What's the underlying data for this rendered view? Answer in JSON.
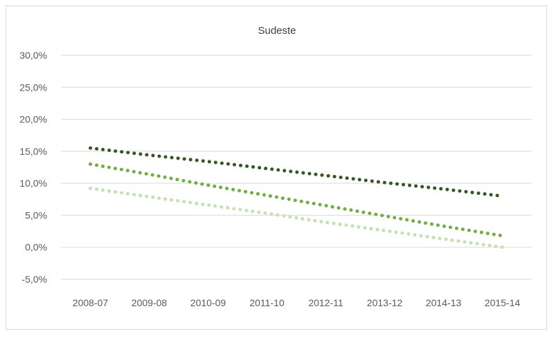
{
  "chart_data": {
    "type": "line",
    "title": "Sudeste",
    "xlabel": "",
    "ylabel": "",
    "categories": [
      "2008-07",
      "2009-08",
      "2010-09",
      "2011-10",
      "2012-11",
      "2013-12",
      "2014-13",
      "2015-14"
    ],
    "ylim": [
      -5,
      30
    ],
    "ytick_labels": [
      "-5,0%",
      "0,0%",
      "5,0%",
      "10,0%",
      "15,0%",
      "20,0%",
      "25,0%",
      "30,0%"
    ],
    "yticks": [
      -5,
      0,
      5,
      10,
      15,
      20,
      25,
      30
    ],
    "grid": true,
    "legend": "none",
    "line_style": "dotted",
    "series": [
      {
        "values": [
          15.5,
          14.4,
          13.4,
          12.3,
          11.2,
          10.1,
          9.1,
          8.0
        ],
        "color": "#375623"
      },
      {
        "values": [
          13.0,
          11.4,
          9.7,
          8.1,
          6.5,
          4.9,
          3.3,
          1.8
        ],
        "color": "#70ad47"
      },
      {
        "values": [
          9.2,
          7.9,
          6.6,
          5.3,
          3.9,
          2.6,
          1.3,
          0.0
        ],
        "color": "#c5e0b4"
      }
    ]
  }
}
